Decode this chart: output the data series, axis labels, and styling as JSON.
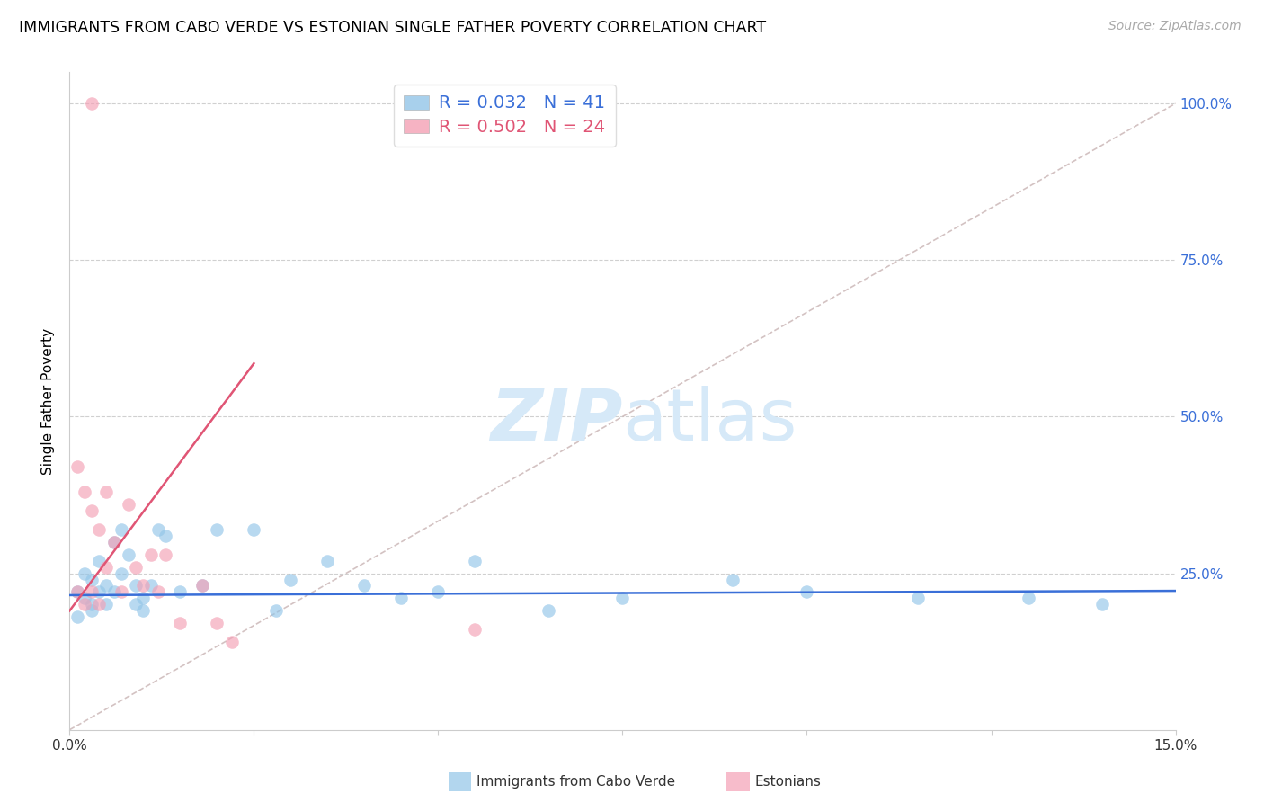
{
  "title": "IMMIGRANTS FROM CABO VERDE VS ESTONIAN SINGLE FATHER POVERTY CORRELATION CHART",
  "source": "Source: ZipAtlas.com",
  "ylabel": "Single Father Poverty",
  "xlim": [
    0.0,
    0.15
  ],
  "ylim": [
    0.0,
    1.05
  ],
  "legend1_label": "Immigrants from Cabo Verde",
  "legend2_label": "Estonians",
  "r1": "0.032",
  "n1": "41",
  "r2": "0.502",
  "n2": "24",
  "color_blue": "#92c5e8",
  "color_pink": "#f4a0b5",
  "line_blue": "#3a6fd8",
  "line_pink": "#e05575",
  "line_diag_color": "#ccb8b8",
  "watermark_color": "#d6e9f8",
  "cabo_verde_x": [
    0.001,
    0.001,
    0.002,
    0.002,
    0.003,
    0.003,
    0.003,
    0.004,
    0.004,
    0.005,
    0.005,
    0.006,
    0.006,
    0.007,
    0.007,
    0.008,
    0.009,
    0.009,
    0.01,
    0.01,
    0.011,
    0.012,
    0.013,
    0.015,
    0.018,
    0.02,
    0.025,
    0.028,
    0.03,
    0.035,
    0.04,
    0.045,
    0.05,
    0.055,
    0.065,
    0.075,
    0.09,
    0.1,
    0.115,
    0.13,
    0.14
  ],
  "cabo_verde_y": [
    0.22,
    0.18,
    0.25,
    0.21,
    0.24,
    0.2,
    0.19,
    0.27,
    0.22,
    0.23,
    0.2,
    0.3,
    0.22,
    0.32,
    0.25,
    0.28,
    0.23,
    0.2,
    0.21,
    0.19,
    0.23,
    0.32,
    0.31,
    0.22,
    0.23,
    0.32,
    0.32,
    0.19,
    0.24,
    0.27,
    0.23,
    0.21,
    0.22,
    0.27,
    0.19,
    0.21,
    0.24,
    0.22,
    0.21,
    0.21,
    0.2
  ],
  "estonian_x": [
    0.001,
    0.001,
    0.002,
    0.002,
    0.003,
    0.003,
    0.004,
    0.004,
    0.005,
    0.005,
    0.006,
    0.007,
    0.008,
    0.009,
    0.01,
    0.011,
    0.012,
    0.013,
    0.015,
    0.018,
    0.02,
    0.022,
    0.055,
    0.003
  ],
  "estonian_y": [
    0.42,
    0.22,
    0.38,
    0.2,
    0.35,
    0.22,
    0.32,
    0.2,
    0.38,
    0.26,
    0.3,
    0.22,
    0.36,
    0.26,
    0.23,
    0.28,
    0.22,
    0.28,
    0.17,
    0.23,
    0.17,
    0.14,
    0.16,
    1.0
  ],
  "blue_line_x": [
    0.0,
    0.15
  ],
  "blue_line_y": [
    0.215,
    0.222
  ],
  "pink_line_x": [
    0.0,
    0.025
  ],
  "pink_line_y": [
    0.19,
    0.585
  ],
  "diag_line_x": [
    0.0,
    0.15
  ],
  "diag_line_y": [
    0.0,
    1.0
  ]
}
